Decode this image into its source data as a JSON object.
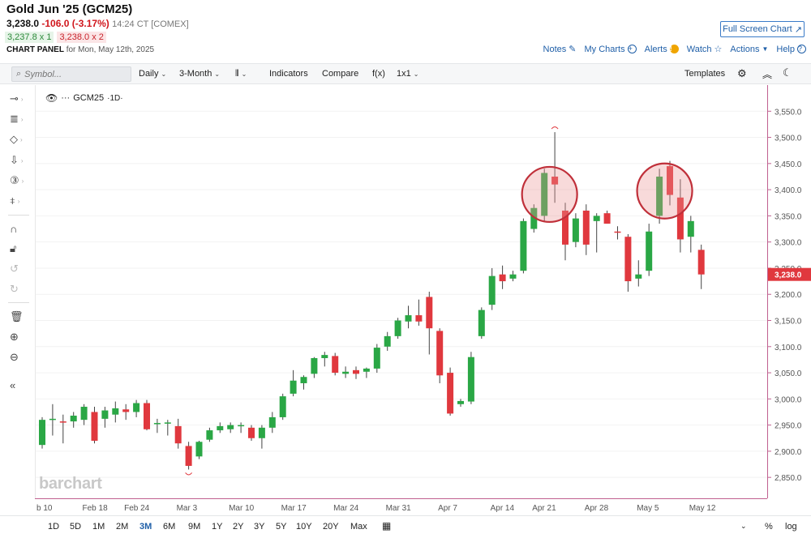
{
  "header": {
    "title": "Gold Jun '25 (GCM25)",
    "last": "3,238.0",
    "change": "-106.0 (-3.17%)",
    "time_meta": "14:24 CT [COMEX]",
    "bid": "3,237.8 x 1",
    "ask": "3,238.0 x 2",
    "panel_label": "CHART PANEL",
    "panel_date": "for Mon, May 12th, 2025",
    "fullscreen_label": "Full Screen Chart",
    "links": {
      "notes": "Notes",
      "my_charts": "My Charts",
      "alerts": "Alerts",
      "watch": "Watch",
      "actions": "Actions",
      "help": "Help"
    }
  },
  "toolbar": {
    "search_placeholder": "Symbol...",
    "interval": "Daily",
    "period": "3-Month",
    "indicators": "Indicators",
    "compare": "Compare",
    "fx": "f(x)",
    "layout": "1x1",
    "templates": "Templates"
  },
  "legend": {
    "symbol": "GCM25",
    "interval": "·1D·"
  },
  "watermark": "barchart",
  "price_tag": "3,238.0",
  "bottom": {
    "ranges": [
      "1D",
      "5D",
      "1M",
      "2M",
      "3M",
      "6M",
      "9M",
      "1Y",
      "2Y",
      "3Y",
      "5Y",
      "10Y",
      "20Y",
      "Max"
    ],
    "active_range": "3M",
    "pct": "%",
    "log": "log"
  },
  "colors": {
    "up": "#2aa745",
    "down": "#e0383e",
    "axis": "#c06090",
    "link": "#1f5fa8"
  },
  "chart_data": {
    "type": "candlestick",
    "yticks": [
      2850,
      2900,
      2950,
      3000,
      3050,
      3100,
      3150,
      3200,
      3250,
      3300,
      3350,
      3400,
      3450,
      3500,
      3550
    ],
    "ytick_labels": [
      "2,850.0",
      "2,900.0",
      "2,950.0",
      "3,000.0",
      "3,050.0",
      "3,100.0",
      "3,150.0",
      "3,200.0",
      "3,250.0",
      "3,300.0",
      "3,350.0",
      "3,400.0",
      "3,450.0",
      "3,500.0",
      "3,550.0"
    ],
    "ylim": [
      2810,
      3600
    ],
    "xlabels": [
      {
        "label": "b 10",
        "i": 0
      },
      {
        "label": "Feb 18",
        "i": 5
      },
      {
        "label": "Feb 24",
        "i": 9
      },
      {
        "label": "Mar 3",
        "i": 14
      },
      {
        "label": "Mar 10",
        "i": 19
      },
      {
        "label": "Mar 17",
        "i": 24
      },
      {
        "label": "Mar 24",
        "i": 29
      },
      {
        "label": "Mar 31",
        "i": 34
      },
      {
        "label": "Apr 7",
        "i": 39
      },
      {
        "label": "Apr 14",
        "i": 44
      },
      {
        "label": "Apr 21",
        "i": 48
      },
      {
        "label": "Apr 28",
        "i": 53
      },
      {
        "label": "May 5",
        "i": 58
      },
      {
        "label": "May 12",
        "i": 63
      }
    ],
    "candles": [
      {
        "o": 2912,
        "h": 2965,
        "l": 2905,
        "c": 2960
      },
      {
        "o": 2960,
        "h": 2990,
        "l": 2930,
        "c": 2962
      },
      {
        "o": 2957,
        "h": 2970,
        "l": 2915,
        "c": 2955
      },
      {
        "o": 2957,
        "h": 2975,
        "l": 2945,
        "c": 2968
      },
      {
        "o": 2960,
        "h": 2990,
        "l": 2950,
        "c": 2985
      },
      {
        "o": 2975,
        "h": 2985,
        "l": 2915,
        "c": 2920
      },
      {
        "o": 2962,
        "h": 2985,
        "l": 2945,
        "c": 2978
      },
      {
        "o": 2970,
        "h": 2995,
        "l": 2955,
        "c": 2982
      },
      {
        "o": 2980,
        "h": 2990,
        "l": 2960,
        "c": 2975
      },
      {
        "o": 2975,
        "h": 2998,
        "l": 2965,
        "c": 2992
      },
      {
        "o": 2992,
        "h": 2998,
        "l": 2940,
        "c": 2942
      },
      {
        "o": 2952,
        "h": 2962,
        "l": 2935,
        "c": 2954
      },
      {
        "o": 2955,
        "h": 2960,
        "l": 2930,
        "c": 2955
      },
      {
        "o": 2948,
        "h": 2962,
        "l": 2905,
        "c": 2915
      },
      {
        "o": 2910,
        "h": 2918,
        "l": 2865,
        "c": 2872
      },
      {
        "o": 2890,
        "h": 2920,
        "l": 2885,
        "c": 2918
      },
      {
        "o": 2922,
        "h": 2945,
        "l": 2918,
        "c": 2940
      },
      {
        "o": 2940,
        "h": 2955,
        "l": 2935,
        "c": 2948
      },
      {
        "o": 2942,
        "h": 2955,
        "l": 2935,
        "c": 2950
      },
      {
        "o": 2948,
        "h": 2955,
        "l": 2935,
        "c": 2950
      },
      {
        "o": 2945,
        "h": 2950,
        "l": 2920,
        "c": 2925
      },
      {
        "o": 2925,
        "h": 2950,
        "l": 2905,
        "c": 2945
      },
      {
        "o": 2945,
        "h": 2975,
        "l": 2935,
        "c": 2965
      },
      {
        "o": 2965,
        "h": 3010,
        "l": 2960,
        "c": 3005
      },
      {
        "o": 3010,
        "h": 3055,
        "l": 3005,
        "c": 3035
      },
      {
        "o": 3030,
        "h": 3045,
        "l": 3018,
        "c": 3042
      },
      {
        "o": 3048,
        "h": 3080,
        "l": 3040,
        "c": 3078
      },
      {
        "o": 3078,
        "h": 3090,
        "l": 3062,
        "c": 3084
      },
      {
        "o": 3082,
        "h": 3088,
        "l": 3045,
        "c": 3050
      },
      {
        "o": 3048,
        "h": 3062,
        "l": 3040,
        "c": 3052
      },
      {
        "o": 3055,
        "h": 3062,
        "l": 3038,
        "c": 3048
      },
      {
        "o": 3052,
        "h": 3060,
        "l": 3040,
        "c": 3058
      },
      {
        "o": 3058,
        "h": 3105,
        "l": 3050,
        "c": 3098
      },
      {
        "o": 3100,
        "h": 3128,
        "l": 3092,
        "c": 3120
      },
      {
        "o": 3120,
        "h": 3155,
        "l": 3115,
        "c": 3150
      },
      {
        "o": 3148,
        "h": 3178,
        "l": 3135,
        "c": 3160
      },
      {
        "o": 3160,
        "h": 3190,
        "l": 3140,
        "c": 3148
      },
      {
        "o": 3195,
        "h": 3205,
        "l": 3085,
        "c": 3135
      },
      {
        "o": 3130,
        "h": 3135,
        "l": 3030,
        "c": 3045
      },
      {
        "o": 3050,
        "h": 3060,
        "l": 2968,
        "c": 2972
      },
      {
        "o": 2990,
        "h": 3000,
        "l": 2985,
        "c": 2996
      },
      {
        "o": 2995,
        "h": 3090,
        "l": 2990,
        "c": 3080
      },
      {
        "o": 3120,
        "h": 3175,
        "l": 3115,
        "c": 3170
      },
      {
        "o": 3180,
        "h": 3250,
        "l": 3170,
        "c": 3235
      },
      {
        "o": 3238,
        "h": 3255,
        "l": 3210,
        "c": 3225
      },
      {
        "o": 3230,
        "h": 3245,
        "l": 3225,
        "c": 3238
      },
      {
        "o": 3245,
        "h": 3345,
        "l": 3240,
        "c": 3340
      },
      {
        "o": 3325,
        "h": 3372,
        "l": 3318,
        "c": 3365
      },
      {
        "o": 3350,
        "h": 3440,
        "l": 3340,
        "c": 3432
      },
      {
        "o": 3425,
        "h": 3510,
        "l": 3375,
        "c": 3410
      },
      {
        "o": 3360,
        "h": 3375,
        "l": 3265,
        "c": 3295
      },
      {
        "o": 3300,
        "h": 3355,
        "l": 3290,
        "c": 3345
      },
      {
        "o": 3360,
        "h": 3372,
        "l": 3275,
        "c": 3295
      },
      {
        "o": 3340,
        "h": 3355,
        "l": 3280,
        "c": 3350
      },
      {
        "o": 3355,
        "h": 3360,
        "l": 3335,
        "c": 3335
      },
      {
        "o": 3320,
        "h": 3330,
        "l": 3305,
        "c": 3318
      },
      {
        "o": 3310,
        "h": 3315,
        "l": 3205,
        "c": 3225
      },
      {
        "o": 3230,
        "h": 3265,
        "l": 3215,
        "c": 3238
      },
      {
        "o": 3245,
        "h": 3335,
        "l": 3235,
        "c": 3320
      },
      {
        "o": 3350,
        "h": 3440,
        "l": 3335,
        "c": 3425
      },
      {
        "o": 3445,
        "h": 3455,
        "l": 3370,
        "c": 3390
      },
      {
        "o": 3385,
        "h": 3420,
        "l": 3280,
        "c": 3305
      },
      {
        "o": 3310,
        "h": 3350,
        "l": 3280,
        "c": 3340
      },
      {
        "o": 3285,
        "h": 3295,
        "l": 3210,
        "c": 3238
      }
    ],
    "circled_candles": [
      49,
      60
    ],
    "last_price": 3238.0
  }
}
